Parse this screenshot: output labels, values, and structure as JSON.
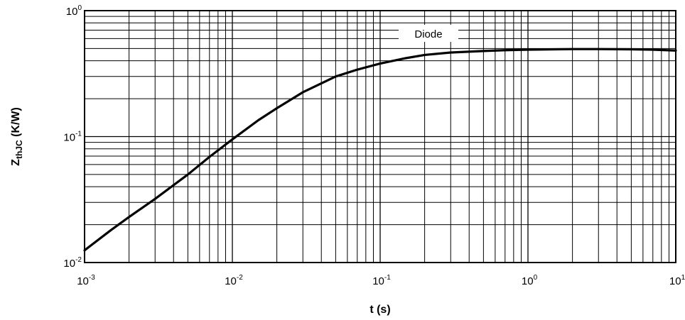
{
  "chart_data": {
    "type": "line",
    "xscale": "log",
    "yscale": "log",
    "xlim": [
      0.001,
      10
    ],
    "ylim": [
      0.01,
      1
    ],
    "grid": true,
    "xlabel": "t (s)",
    "ylabel": {
      "main": "Z",
      "sub": "thJC",
      "unit": " (K/W)"
    },
    "xticks": [
      {
        "base": "10",
        "exp": "-3",
        "value": 0.001
      },
      {
        "base": "10",
        "exp": "-2",
        "value": 0.01
      },
      {
        "base": "10",
        "exp": "-1",
        "value": 0.1
      },
      {
        "base": "10",
        "exp": "0",
        "value": 1
      },
      {
        "base": "10",
        "exp": "1",
        "value": 10
      }
    ],
    "yticks": [
      {
        "base": "10",
        "exp": "-2",
        "value": 0.01
      },
      {
        "base": "10",
        "exp": "-1",
        "value": 0.1
      },
      {
        "base": "10",
        "exp": "0",
        "value": 1
      }
    ],
    "legend": {
      "placement": "top-right",
      "entries": [
        "Diode"
      ]
    },
    "series": [
      {
        "name": "Diode",
        "color": "#000000",
        "x": [
          0.001,
          0.0015,
          0.002,
          0.003,
          0.005,
          0.007,
          0.01,
          0.015,
          0.02,
          0.03,
          0.05,
          0.07,
          0.1,
          0.15,
          0.2,
          0.3,
          0.5,
          0.7,
          1,
          2,
          3,
          5,
          7,
          10
        ],
        "y": [
          0.0125,
          0.018,
          0.023,
          0.032,
          0.05,
          0.069,
          0.095,
          0.135,
          0.168,
          0.225,
          0.3,
          0.34,
          0.38,
          0.42,
          0.445,
          0.465,
          0.478,
          0.485,
          0.49,
          0.495,
          0.495,
          0.493,
          0.49,
          0.482
        ]
      }
    ]
  }
}
